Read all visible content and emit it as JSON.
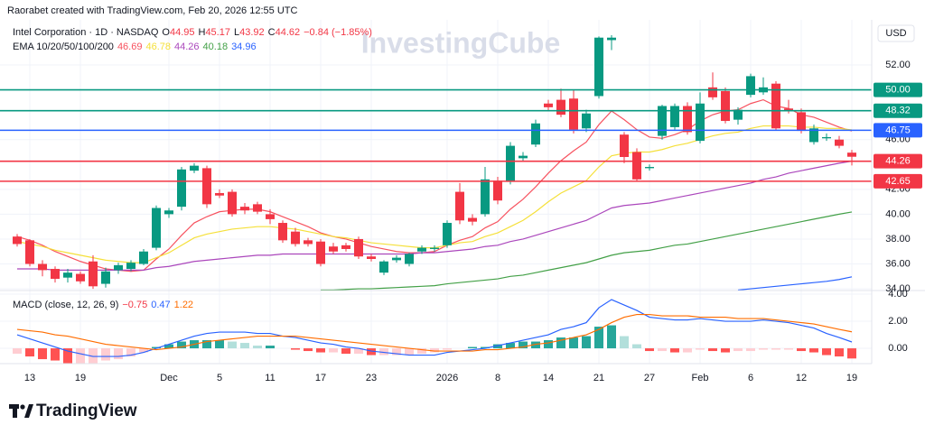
{
  "header": {
    "credit": "Raorabet created with TradingView.com, Feb 20, 2026 12:55 UTC",
    "watermark": "InvestingCube",
    "currency": "USD",
    "footer": "TradingView"
  },
  "chart_data": {
    "type": "candlestick",
    "title": "Intel Corporation · 1D · NASDAQ",
    "ohlc_legend": [
      {
        "key": "O",
        "value": "44.95"
      },
      {
        "key": "H",
        "value": "45.17"
      },
      {
        "key": "L",
        "value": "43.92"
      },
      {
        "key": "C",
        "value": "44.62"
      }
    ],
    "change": "−0.84 (−1.85%)",
    "categories": [
      null,
      "13",
      null,
      null,
      null,
      "19",
      null,
      null,
      null,
      null,
      null,
      null,
      "Dec",
      null,
      null,
      null,
      "5",
      null,
      null,
      null,
      "11",
      null,
      null,
      null,
      "17",
      null,
      null,
      null,
      "23",
      null,
      null,
      null,
      null,
      null,
      "2026",
      null,
      null,
      null,
      "8",
      null,
      null,
      null,
      "14",
      null,
      null,
      null,
      "21",
      null,
      null,
      null,
      "27",
      null,
      null,
      null,
      "Feb",
      null,
      null,
      null,
      "6",
      null,
      null,
      null,
      "12",
      null,
      null,
      null,
      "19"
    ],
    "open": [
      38.2,
      37.9,
      36.0,
      35.6,
      34.9,
      35.2,
      36.2,
      34.4,
      35.5,
      35.6,
      36.0,
      37.3,
      40.0,
      40.6,
      43.5,
      43.7,
      41.7,
      41.8,
      40.6,
      40.8,
      40.0,
      39.3,
      38.6,
      37.9,
      37.8,
      37.4,
      37.5,
      38.0,
      36.6,
      35.3,
      36.3,
      36.0,
      37.0,
      37.2,
      37.5,
      41.8,
      39.7,
      40.0,
      42.7,
      42.6,
      44.5,
      45.6,
      48.9,
      49.2,
      49.3,
      46.9,
      49.5,
      54.0,
      46.4,
      45.0,
      43.7,
      46.3,
      47.0,
      48.7,
      45.9,
      50.2,
      49.9,
      47.6,
      49.6,
      49.8,
      50.5,
      48.5,
      48.2,
      45.8,
      46.1,
      46.0,
      44.95
    ],
    "high": [
      38.4,
      38.0,
      36.3,
      35.8,
      35.6,
      35.4,
      36.7,
      35.7,
      36.1,
      36.3,
      37.2,
      40.7,
      40.5,
      43.8,
      44.1,
      43.9,
      42.0,
      42.0,
      40.9,
      41.0,
      40.4,
      39.5,
      38.9,
      38.1,
      38.0,
      37.7,
      37.7,
      38.2,
      36.8,
      36.3,
      36.7,
      36.9,
      37.5,
      37.5,
      39.5,
      42.5,
      40.0,
      43.8,
      43.0,
      45.8,
      45.0,
      47.6,
      49.2,
      50.1,
      50.0,
      48.4,
      54.3,
      54.4,
      46.6,
      45.3,
      44.0,
      48.8,
      48.9,
      49.0,
      49.8,
      51.4,
      50.2,
      48.6,
      51.3,
      51.0,
      50.7,
      49.2,
      48.5,
      47.2,
      46.5,
      46.3,
      45.17
    ],
    "low": [
      37.4,
      35.8,
      35.0,
      34.5,
      34.5,
      34.4,
      34.0,
      34.1,
      35.2,
      35.4,
      35.9,
      37.1,
      39.7,
      40.3,
      43.3,
      40.5,
      41.3,
      39.8,
      40.0,
      40.0,
      39.2,
      37.7,
      37.4,
      37.4,
      35.8,
      36.8,
      37.0,
      36.4,
      36.2,
      35.1,
      36.1,
      35.8,
      36.8,
      37.0,
      37.3,
      39.2,
      39.1,
      39.8,
      40.8,
      42.4,
      44.2,
      45.4,
      48.3,
      47.8,
      46.5,
      46.6,
      49.3,
      53.2,
      44.1,
      42.6,
      43.5,
      46.0,
      46.8,
      46.4,
      45.7,
      49.2,
      47.3,
      47.2,
      49.4,
      49.6,
      46.7,
      48.1,
      46.5,
      45.6,
      45.9,
      45.3,
      43.92
    ],
    "close": [
      37.6,
      36.0,
      35.5,
      34.8,
      35.3,
      34.6,
      34.2,
      35.4,
      35.9,
      36.1,
      37.0,
      40.5,
      40.3,
      43.6,
      43.9,
      40.8,
      41.5,
      40.0,
      40.3,
      40.2,
      39.6,
      37.9,
      37.6,
      37.6,
      36.0,
      37.0,
      37.2,
      36.6,
      36.4,
      36.2,
      36.5,
      36.8,
      37.3,
      37.3,
      39.3,
      39.5,
      39.4,
      42.8,
      41.1,
      45.5,
      44.7,
      47.3,
      48.6,
      48.0,
      46.8,
      48.1,
      54.2,
      54.2,
      44.6,
      42.8,
      43.8,
      48.7,
      48.7,
      46.6,
      48.9,
      49.4,
      47.5,
      48.4,
      51.1,
      50.2,
      46.9,
      48.3,
      46.7,
      46.9,
      46.2,
      45.5,
      44.62
    ],
    "up_color": "#089981",
    "down_color": "#f23645",
    "ylim": [
      33.86,
      55.63
    ],
    "yticks": [
      {
        "value": 34,
        "label": "34.00"
      },
      {
        "value": 36,
        "label": "36.00"
      },
      {
        "value": 38,
        "label": "38.00"
      },
      {
        "value": 40,
        "label": "40.00"
      },
      {
        "value": 42,
        "label": "42.00"
      },
      {
        "value": 46,
        "label": "46.00"
      },
      {
        "value": 52,
        "label": "52.00"
      }
    ],
    "grid": true,
    "overlay_title": "EMA 10/20/50/100/200",
    "series": [
      {
        "color": "#f7525f",
        "values": [
          38.2,
          37.9,
          37.5,
          37.0,
          36.6,
          36.2,
          35.9,
          35.6,
          35.5,
          35.4,
          35.5,
          36.4,
          37.2,
          38.3,
          39.3,
          39.8,
          40.2,
          40.3,
          40.4,
          40.4,
          40.2,
          39.8,
          39.4,
          39.0,
          38.5,
          38.2,
          38.0,
          37.7,
          37.4,
          37.2,
          37.0,
          36.9,
          36.9,
          37.0,
          37.5,
          37.9,
          38.2,
          38.9,
          39.4,
          40.4,
          41.2,
          42.2,
          43.3,
          44.3,
          45.1,
          45.8,
          47.2,
          48.3,
          47.6,
          46.8,
          46.2,
          46.1,
          46.4,
          46.8,
          47.5,
          48.0,
          48.3,
          48.4,
          48.9,
          49.2,
          48.7,
          48.5,
          48.0,
          47.8,
          47.4,
          47.0,
          46.69
        ]
      },
      {
        "color": "#f5e03a",
        "values": [
          37.8,
          37.6,
          37.4,
          37.1,
          36.9,
          36.7,
          36.5,
          36.3,
          36.2,
          36.1,
          36.1,
          36.5,
          36.9,
          37.5,
          38.1,
          38.4,
          38.6,
          38.8,
          38.9,
          39.0,
          39.0,
          38.9,
          38.8,
          38.6,
          38.4,
          38.2,
          38.1,
          37.9,
          37.7,
          37.6,
          37.5,
          37.4,
          37.3,
          37.3,
          37.5,
          37.7,
          37.8,
          38.2,
          38.5,
          39.0,
          39.5,
          40.2,
          41.0,
          41.7,
          42.2,
          42.7,
          43.8,
          44.7,
          44.9,
          45.0,
          45.0,
          45.2,
          45.5,
          45.7,
          46.0,
          46.3,
          46.5,
          46.6,
          46.9,
          47.1,
          47.1,
          47.1,
          47.0,
          47.0,
          46.9,
          46.9,
          46.78
        ]
      },
      {
        "color": "#ab47bc",
        "values": [
          35.6,
          35.6,
          35.6,
          35.5,
          35.5,
          35.5,
          35.5,
          35.5,
          35.5,
          35.5,
          35.5,
          35.7,
          35.8,
          36.0,
          36.2,
          36.3,
          36.4,
          36.5,
          36.6,
          36.7,
          36.7,
          36.8,
          36.8,
          36.8,
          36.8,
          36.8,
          36.8,
          36.8,
          36.8,
          36.8,
          36.8,
          36.8,
          36.9,
          36.9,
          37.0,
          37.1,
          37.2,
          37.4,
          37.5,
          37.8,
          38.0,
          38.3,
          38.6,
          38.9,
          39.2,
          39.5,
          40.0,
          40.5,
          40.7,
          40.8,
          40.9,
          41.1,
          41.3,
          41.5,
          41.7,
          41.9,
          42.1,
          42.3,
          42.5,
          42.8,
          43.0,
          43.3,
          43.5,
          43.7,
          43.9,
          44.1,
          44.26
        ]
      },
      {
        "color": "#43a047",
        "values": [
          null,
          null,
          null,
          null,
          null,
          null,
          null,
          null,
          null,
          null,
          null,
          null,
          null,
          null,
          null,
          null,
          null,
          null,
          null,
          null,
          null,
          null,
          null,
          null,
          33.9,
          33.9,
          33.95,
          34.0,
          34.0,
          34.05,
          34.1,
          34.15,
          34.2,
          34.25,
          34.4,
          34.5,
          34.6,
          34.7,
          34.8,
          35.0,
          35.1,
          35.3,
          35.5,
          35.7,
          35.9,
          36.1,
          36.4,
          36.7,
          36.9,
          37.0,
          37.1,
          37.3,
          37.5,
          37.6,
          37.8,
          38.0,
          38.2,
          38.4,
          38.6,
          38.8,
          39.0,
          39.2,
          39.4,
          39.6,
          39.8,
          40.0,
          40.18
        ]
      },
      {
        "color": "#2962ff",
        "values": [
          null,
          null,
          null,
          null,
          null,
          null,
          null,
          null,
          null,
          null,
          null,
          null,
          null,
          null,
          null,
          null,
          null,
          null,
          null,
          null,
          null,
          null,
          null,
          null,
          null,
          null,
          null,
          null,
          null,
          null,
          null,
          null,
          null,
          null,
          null,
          null,
          null,
          null,
          null,
          null,
          null,
          null,
          null,
          null,
          null,
          null,
          null,
          null,
          null,
          null,
          null,
          null,
          null,
          null,
          null,
          null,
          null,
          33.9,
          34.0,
          34.1,
          34.2,
          34.3,
          34.4,
          34.5,
          34.6,
          34.75,
          34.96
        ]
      }
    ],
    "levels": [
      {
        "value": 50,
        "label": "50.00",
        "color": "#089981"
      },
      {
        "value": 48.32,
        "label": "48.32",
        "color": "#089981"
      },
      {
        "value": 46.75,
        "label": "46.75",
        "color": "#2962ff"
      },
      {
        "value": 44.26,
        "label": "44.26",
        "color": "#f23645"
      },
      {
        "value": 42.65,
        "label": "42.65",
        "color": "#f23645"
      }
    ],
    "macd": {
      "type": "macd",
      "title": "MACD (close, 12, 26, 9)",
      "legend": [
        "−0.75",
        "0.47",
        "1.22"
      ],
      "histogram": [
        -0.4,
        -0.6,
        -0.8,
        -0.9,
        -1.1,
        -1.1,
        -1.1,
        -0.9,
        -0.8,
        -0.6,
        -0.3,
        0.1,
        0.3,
        0.5,
        0.6,
        0.6,
        0.6,
        0.5,
        0.4,
        0.2,
        0.2,
        0.0,
        -0.1,
        -0.2,
        -0.3,
        -0.3,
        -0.4,
        -0.4,
        -0.5,
        -0.5,
        -0.5,
        -0.5,
        -0.4,
        -0.3,
        -0.1,
        0.0,
        0.1,
        0.1,
        0.3,
        0.4,
        0.5,
        0.5,
        0.6,
        0.8,
        0.8,
        0.9,
        1.6,
        1.7,
        0.9,
        0.3,
        -0.2,
        -0.2,
        -0.3,
        -0.3,
        -0.1,
        -0.2,
        -0.3,
        -0.2,
        -0.2,
        -0.1,
        -0.1,
        -0.1,
        -0.2,
        -0.3,
        -0.5,
        -0.6,
        -0.75
      ],
      "macd": [
        1.0,
        0.7,
        0.4,
        0.1,
        -0.2,
        -0.4,
        -0.6,
        -0.6,
        -0.6,
        -0.5,
        -0.3,
        0.0,
        0.3,
        0.6,
        0.9,
        1.1,
        1.2,
        1.2,
        1.2,
        1.1,
        1.1,
        0.9,
        0.8,
        0.6,
        0.4,
        0.3,
        0.1,
        0.0,
        -0.2,
        -0.3,
        -0.4,
        -0.5,
        -0.5,
        -0.5,
        -0.3,
        -0.2,
        -0.1,
        0.0,
        0.2,
        0.4,
        0.6,
        0.8,
        1.0,
        1.4,
        1.6,
        1.9,
        3.0,
        3.6,
        3.2,
        2.8,
        2.3,
        2.2,
        2.1,
        2.1,
        2.2,
        2.1,
        2.0,
        2.0,
        2.0,
        2.1,
        2.0,
        1.9,
        1.7,
        1.5,
        1.1,
        0.8,
        0.47
      ],
      "signal": [
        1.4,
        1.3,
        1.2,
        1.0,
        0.9,
        0.7,
        0.5,
        0.3,
        0.2,
        0.1,
        0.0,
        -0.1,
        0.0,
        0.1,
        0.3,
        0.5,
        0.6,
        0.7,
        0.8,
        0.9,
        0.9,
        0.9,
        0.9,
        0.8,
        0.7,
        0.6,
        0.5,
        0.4,
        0.3,
        0.2,
        0.1,
        0.0,
        -0.1,
        -0.2,
        -0.2,
        -0.2,
        -0.2,
        -0.1,
        -0.1,
        0.0,
        0.1,
        0.3,
        0.4,
        0.6,
        0.8,
        1.0,
        1.4,
        1.9,
        2.3,
        2.5,
        2.5,
        2.4,
        2.4,
        2.4,
        2.3,
        2.3,
        2.3,
        2.2,
        2.2,
        2.2,
        2.1,
        2.0,
        1.9,
        1.8,
        1.6,
        1.4,
        1.22
      ],
      "macd_color": "#2962ff",
      "signal_color": "#ff6d00",
      "histogram_colors": [
        "#26a69a",
        "#b2dfdb",
        "#ffcdd2",
        "#ff5252"
      ],
      "ylim": [
        -1.13,
        4.27
      ],
      "yticks": [
        {
          "value": 0,
          "label": "0.00"
        },
        {
          "value": 2,
          "label": "2.00"
        },
        {
          "value": 4,
          "label": "4.00"
        }
      ]
    }
  }
}
